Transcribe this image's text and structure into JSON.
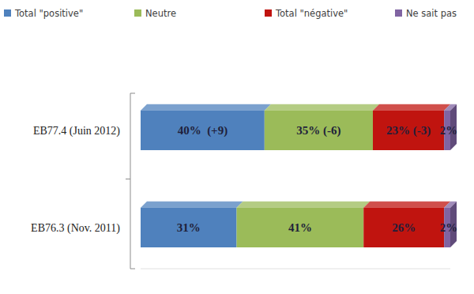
{
  "chart_data": {
    "type": "bar",
    "orientation": "horizontal",
    "stacked": true,
    "data_labels": true,
    "legend": "top",
    "tick_labels": "y",
    "categories": [
      "EB77.4 (Juin 2012)",
      "EB76.3 (Nov. 2011)"
    ],
    "xlim": [
      0,
      100
    ],
    "series": [
      {
        "name": "Total \"positive\"",
        "color": "#4f81bd",
        "values": [
          40,
          31
        ],
        "value_labels": [
          "40%  (+9)",
          "31%"
        ]
      },
      {
        "name": "Neutre",
        "color": "#9bbb59",
        "values": [
          35,
          41
        ],
        "value_labels": [
          "35% (-6)",
          "41%"
        ]
      },
      {
        "name": "Total \"négative\"",
        "color": "#c0140f",
        "values": [
          23,
          26
        ],
        "value_labels": [
          "23% (-3)",
          "26%"
        ]
      },
      {
        "name": "Ne sait pas",
        "color": "#8064a2",
        "values": [
          2,
          2
        ],
        "value_labels": [
          "2%",
          "2%"
        ]
      }
    ]
  }
}
